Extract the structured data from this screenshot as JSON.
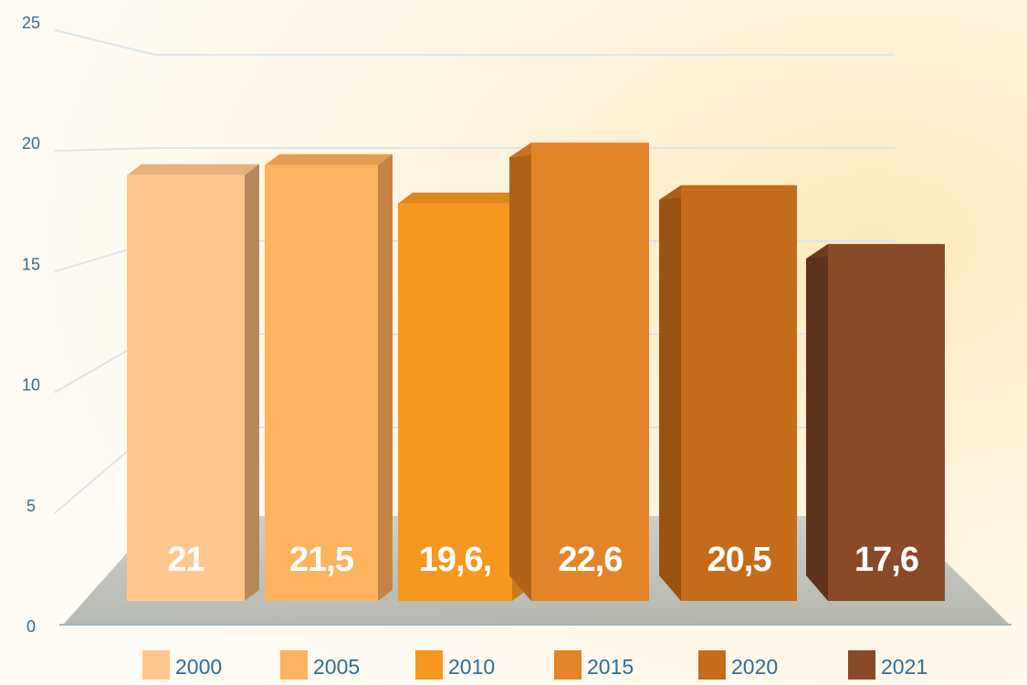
{
  "chart_data": {
    "type": "bar",
    "categories": [
      "2000",
      "2005",
      "2010",
      "2015",
      "2020",
      "2021"
    ],
    "values": [
      21,
      21.5,
      19.6,
      22.6,
      20.5,
      17.6
    ],
    "data_labels": [
      "21",
      "21,5",
      "19,6,",
      "22,6",
      "20,5",
      "17,6"
    ],
    "ylim": [
      0,
      25
    ],
    "yticks": [
      0,
      5,
      10,
      15,
      20,
      25
    ],
    "grid": true,
    "legend_position": "bottom",
    "colors": {
      "bar_fronts": [
        "#ffc78e",
        "#fcb25e",
        "#f6971f",
        "#e3842a",
        "#c46c19",
        "#8a4a2a"
      ],
      "bar_sides": [
        "#b7885d",
        "#c48445",
        "#c9781a",
        "#b1621a",
        "#9a5410",
        "#5e321b"
      ],
      "bar_tops": [
        "#e8b07a",
        "#e59e51",
        "#dd8720",
        "#cb7324",
        "#ad5f17",
        "#6f3a20"
      ],
      "axis_text": "#3a6c8c",
      "legend_text": "#2e6d96",
      "value_label": "#ffffff",
      "grid": "#dbe4ea",
      "floor": "#b9bcb6"
    }
  }
}
